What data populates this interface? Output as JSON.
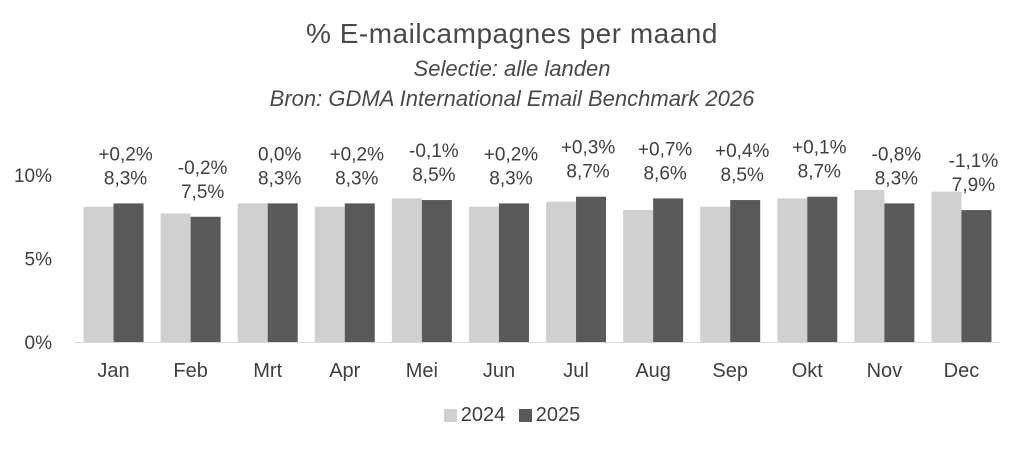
{
  "chart_data": {
    "type": "bar",
    "title": "% E-mailcampagnes per maand",
    "subtitle": "Selectie: alle landen",
    "source": "Bron: GDMA International Email Benchmark 2026",
    "categories": [
      "Jan",
      "Feb",
      "Mrt",
      "Apr",
      "Mei",
      "Jun",
      "Jul",
      "Aug",
      "Sep",
      "Okt",
      "Nov",
      "Dec"
    ],
    "series": [
      {
        "name": "2024",
        "color": "#d0d0d0",
        "values": [
          8.1,
          7.7,
          8.3,
          8.1,
          8.6,
          8.1,
          8.4,
          7.9,
          8.1,
          8.6,
          9.1,
          9.0
        ]
      },
      {
        "name": "2025",
        "color": "#595959",
        "values": [
          8.3,
          7.5,
          8.3,
          8.3,
          8.5,
          8.3,
          8.7,
          8.6,
          8.5,
          8.7,
          8.3,
          7.9
        ]
      }
    ],
    "labels_value": [
      "8,3%",
      "7,5%",
      "8,3%",
      "8,3%",
      "8,5%",
      "8,3%",
      "8,7%",
      "8,6%",
      "8,5%",
      "8,7%",
      "8,3%",
      "7,9%"
    ],
    "labels_change": [
      "+0,2%",
      "-0,2%",
      "0,0%",
      "+0,2%",
      "-0,1%",
      "+0,2%",
      "+0,3%",
      "+0,7%",
      "+0,4%",
      "+0,1%",
      "-0,8%",
      "-1,1%"
    ],
    "yticks": [
      "0%",
      "5%",
      "10%"
    ],
    "ylim": [
      0,
      10
    ],
    "xlabel": "",
    "ylabel": "",
    "grid": false,
    "legend": "bottom-center"
  }
}
